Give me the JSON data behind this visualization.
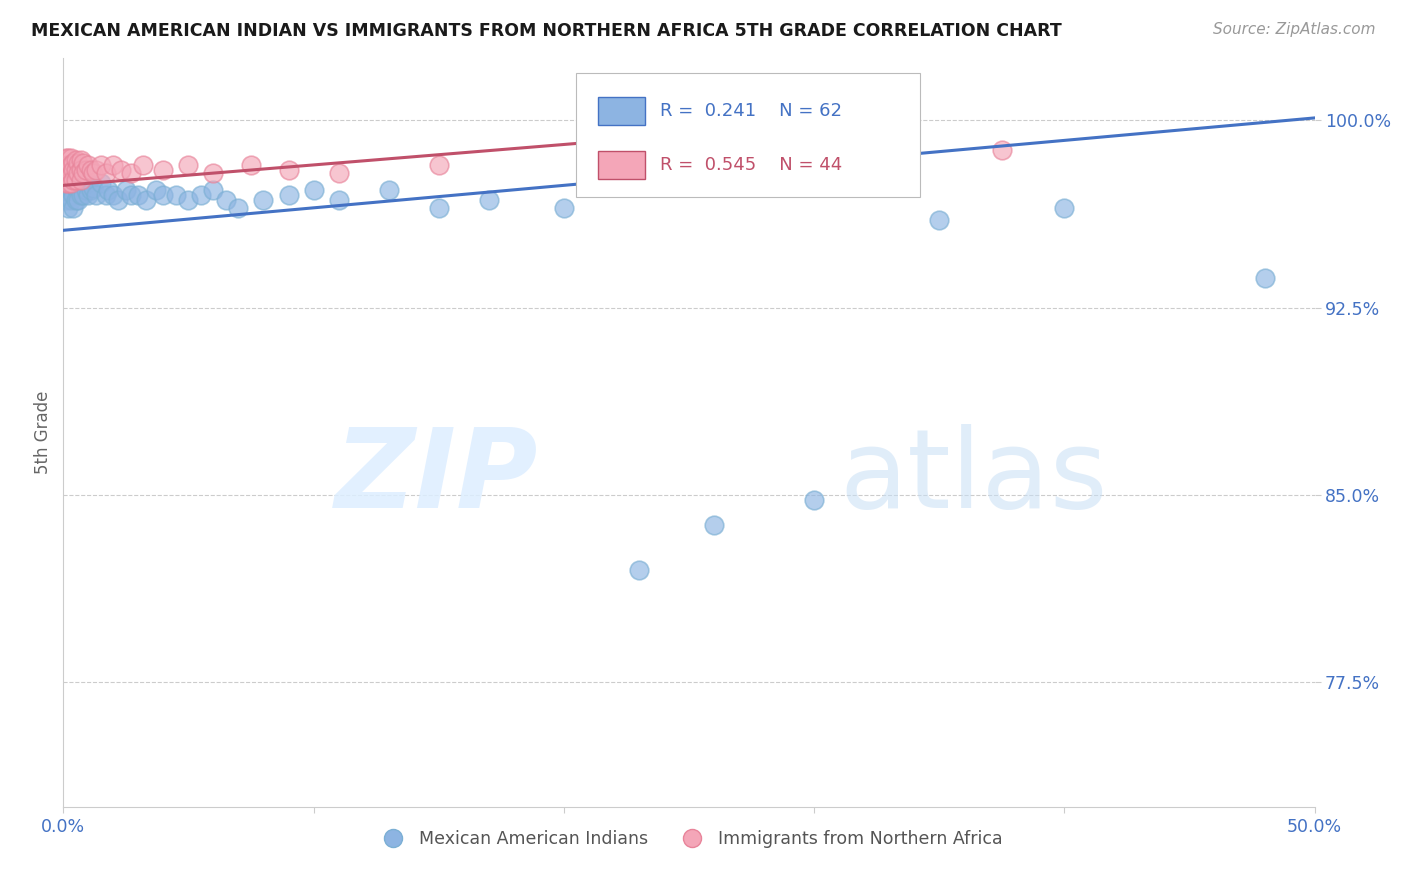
{
  "title": "MEXICAN AMERICAN INDIAN VS IMMIGRANTS FROM NORTHERN AFRICA 5TH GRADE CORRELATION CHART",
  "source": "Source: ZipAtlas.com",
  "ylabel": "5th Grade",
  "yticks": [
    0.775,
    0.85,
    0.925,
    1.0
  ],
  "ytick_labels": [
    "77.5%",
    "85.0%",
    "92.5%",
    "100.0%"
  ],
  "xmin": 0.0,
  "xmax": 0.5,
  "ymin": 0.725,
  "ymax": 1.025,
  "blue_R": 0.241,
  "blue_N": 62,
  "pink_R": 0.545,
  "pink_N": 44,
  "blue_color": "#8DB4E2",
  "pink_color": "#F4A6B8",
  "blue_edge_color": "#7BAFD4",
  "pink_edge_color": "#E8849A",
  "blue_line_color": "#4472C4",
  "pink_line_color": "#C0506A",
  "legend1": "Mexican American Indians",
  "legend2": "Immigrants from Northern Africa",
  "watermark_zip": "ZIP",
  "watermark_atlas": "atlas",
  "blue_line_x0": 0.0,
  "blue_line_x1": 0.5,
  "blue_line_y0": 0.956,
  "blue_line_y1": 1.001,
  "pink_line_x0": 0.0,
  "pink_line_x1": 0.22,
  "pink_line_y0": 0.974,
  "pink_line_y1": 0.992,
  "blue_x": [
    0.001,
    0.001,
    0.001,
    0.002,
    0.002,
    0.002,
    0.002,
    0.003,
    0.003,
    0.003,
    0.003,
    0.004,
    0.004,
    0.004,
    0.004,
    0.005,
    0.005,
    0.005,
    0.006,
    0.006,
    0.006,
    0.007,
    0.007,
    0.008,
    0.008,
    0.009,
    0.01,
    0.01,
    0.011,
    0.012,
    0.013,
    0.015,
    0.017,
    0.018,
    0.02,
    0.022,
    0.025,
    0.027,
    0.03,
    0.033,
    0.037,
    0.04,
    0.045,
    0.05,
    0.055,
    0.06,
    0.065,
    0.07,
    0.08,
    0.09,
    0.1,
    0.11,
    0.13,
    0.15,
    0.17,
    0.2,
    0.23,
    0.26,
    0.3,
    0.35,
    0.4,
    0.48
  ],
  "blue_y": [
    0.978,
    0.972,
    0.968,
    0.98,
    0.975,
    0.97,
    0.965,
    0.982,
    0.977,
    0.973,
    0.968,
    0.98,
    0.975,
    0.97,
    0.965,
    0.978,
    0.973,
    0.968,
    0.978,
    0.973,
    0.968,
    0.975,
    0.97,
    0.975,
    0.97,
    0.972,
    0.975,
    0.97,
    0.972,
    0.973,
    0.97,
    0.975,
    0.97,
    0.972,
    0.97,
    0.968,
    0.972,
    0.97,
    0.97,
    0.968,
    0.972,
    0.97,
    0.97,
    0.968,
    0.97,
    0.972,
    0.968,
    0.965,
    0.968,
    0.97,
    0.972,
    0.968,
    0.972,
    0.965,
    0.968,
    0.965,
    0.82,
    0.838,
    0.848,
    0.96,
    0.965,
    0.937
  ],
  "pink_x": [
    0.001,
    0.001,
    0.001,
    0.001,
    0.002,
    0.002,
    0.002,
    0.002,
    0.003,
    0.003,
    0.003,
    0.003,
    0.004,
    0.004,
    0.004,
    0.005,
    0.005,
    0.005,
    0.006,
    0.006,
    0.007,
    0.007,
    0.007,
    0.008,
    0.008,
    0.009,
    0.01,
    0.011,
    0.012,
    0.013,
    0.015,
    0.017,
    0.02,
    0.023,
    0.027,
    0.032,
    0.04,
    0.05,
    0.06,
    0.075,
    0.09,
    0.11,
    0.15,
    0.375
  ],
  "pink_y": [
    0.985,
    0.982,
    0.978,
    0.975,
    0.985,
    0.982,
    0.978,
    0.975,
    0.985,
    0.982,
    0.978,
    0.975,
    0.983,
    0.98,
    0.976,
    0.984,
    0.98,
    0.976,
    0.983,
    0.979,
    0.984,
    0.98,
    0.976,
    0.983,
    0.979,
    0.98,
    0.982,
    0.98,
    0.979,
    0.98,
    0.982,
    0.979,
    0.982,
    0.98,
    0.979,
    0.982,
    0.98,
    0.982,
    0.979,
    0.982,
    0.98,
    0.979,
    0.982,
    0.988
  ]
}
